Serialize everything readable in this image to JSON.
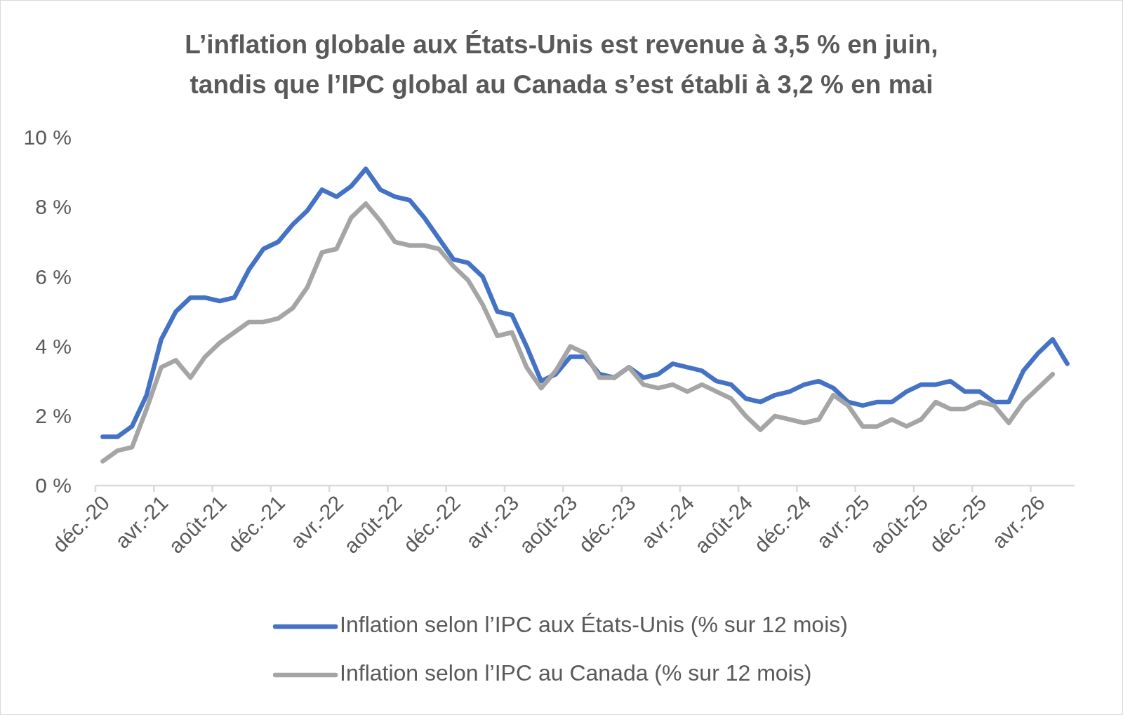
{
  "chart_data": {
    "type": "line",
    "title": "L’inflation globale aux États-Unis est revenue à 3,5 % en juin, tandis que l’IPC global au Canada s’est établi à 3,2 % en mai",
    "categories": [
      "déc.-20",
      null,
      null,
      null,
      "avr.-21",
      null,
      null,
      null,
      "août-21",
      null,
      null,
      null,
      "déc.-21",
      null,
      null,
      null,
      "avr.-22",
      null,
      null,
      null,
      "août-22",
      null,
      null,
      null,
      "déc.-22",
      null,
      null,
      null,
      "avr.-23",
      null,
      null,
      null,
      "août-23",
      null,
      null,
      null,
      "déc.-23",
      null,
      null,
      null,
      "avr.-24",
      null,
      null,
      null,
      "août-24",
      null,
      null,
      null,
      "déc.-24",
      null,
      null,
      null,
      "avr.-25",
      null,
      null,
      null,
      "août-25",
      null,
      null,
      null,
      "déc.-25",
      null,
      null,
      null,
      "avr.-26",
      null,
      null
    ],
    "series": [
      {
        "name": "Inflation selon l’IPC aux États-Unis (% sur 12 mois)",
        "color": "#4472c4",
        "values": [
          1.4,
          1.4,
          1.7,
          2.6,
          4.2,
          5.0,
          5.4,
          5.4,
          5.3,
          5.4,
          6.2,
          6.8,
          7.0,
          7.5,
          7.9,
          8.5,
          8.3,
          8.6,
          9.1,
          8.5,
          8.3,
          8.2,
          7.7,
          7.1,
          6.5,
          6.4,
          6.0,
          5.0,
          4.9,
          4.0,
          3.0,
          3.2,
          3.7,
          3.7,
          3.2,
          3.1,
          3.4,
          3.1,
          3.2,
          3.5,
          3.4,
          3.3,
          3.0,
          2.9,
          2.5,
          2.4,
          2.6,
          2.7,
          2.9,
          3.0,
          2.8,
          2.4,
          2.3,
          2.4,
          2.4,
          2.7,
          2.9,
          2.9,
          3.0,
          2.7,
          2.7,
          2.4,
          2.4,
          3.3,
          3.8,
          4.2,
          3.5
        ]
      },
      {
        "name": "Inflation selon l’IPC au Canada (% sur 12 mois)",
        "color": "#a5a5a5",
        "values": [
          0.7,
          1.0,
          1.1,
          2.2,
          3.4,
          3.6,
          3.1,
          3.7,
          4.1,
          4.4,
          4.7,
          4.7,
          4.8,
          5.1,
          5.7,
          6.7,
          6.8,
          7.7,
          8.1,
          7.6,
          7.0,
          6.9,
          6.9,
          6.8,
          6.3,
          5.9,
          5.2,
          4.3,
          4.4,
          3.4,
          2.8,
          3.3,
          4.0,
          3.8,
          3.1,
          3.1,
          3.4,
          2.9,
          2.8,
          2.9,
          2.7,
          2.9,
          2.7,
          2.5,
          2.0,
          1.6,
          2.0,
          1.9,
          1.8,
          1.9,
          2.6,
          2.3,
          1.7,
          1.7,
          1.9,
          1.7,
          1.9,
          2.4,
          2.2,
          2.2,
          2.4,
          2.3,
          1.8,
          2.4,
          2.8,
          3.2,
          null
        ]
      }
    ],
    "ylim": [
      0,
      10
    ],
    "yticks": [
      {
        "value": 0,
        "label": "0 %"
      },
      {
        "value": 2,
        "label": "2 %"
      },
      {
        "value": 4,
        "label": "4 %"
      },
      {
        "value": 6,
        "label": "6 %"
      },
      {
        "value": 8,
        "label": "8 %"
      },
      {
        "value": 10,
        "label": "10 %"
      }
    ],
    "legend": "bottom",
    "line_style": "solid"
  }
}
